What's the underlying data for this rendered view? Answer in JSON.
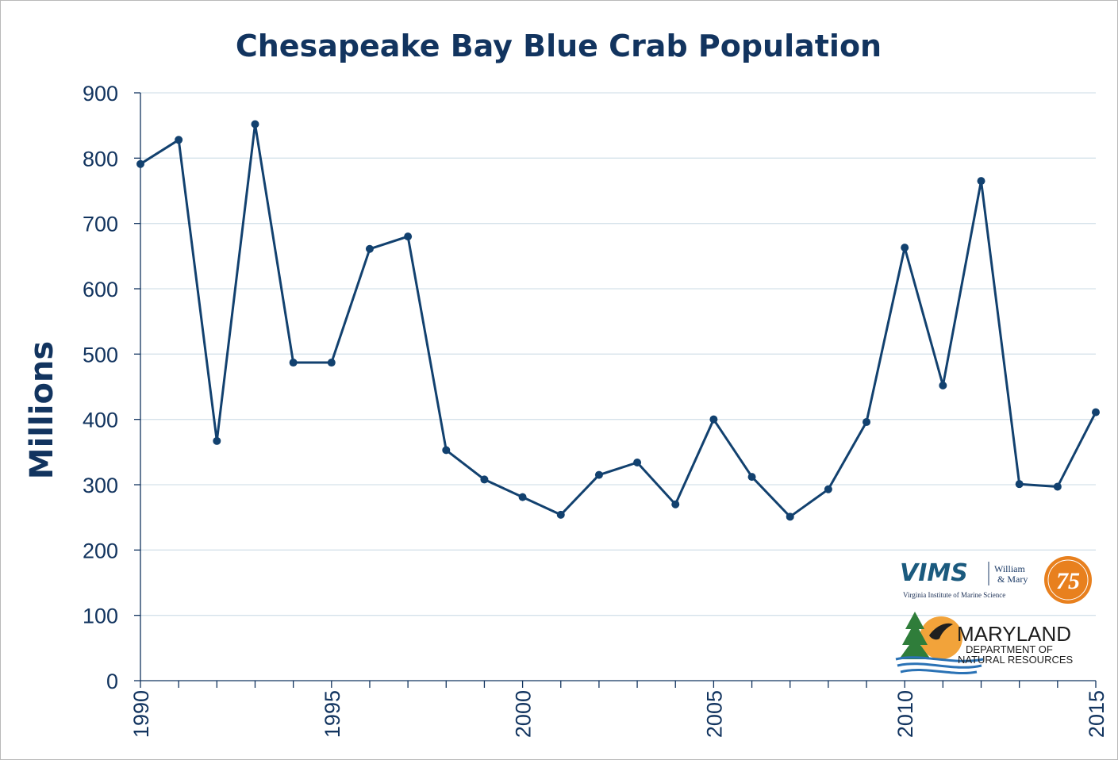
{
  "chart_data": {
    "type": "line",
    "title": "Chesapeake Bay Blue Crab Population",
    "xlabel": "",
    "ylabel": "Millions",
    "xlim": [
      1990,
      2015
    ],
    "ylim": [
      0,
      900
    ],
    "y_ticks": [
      0,
      100,
      200,
      300,
      400,
      500,
      600,
      700,
      800,
      900
    ],
    "x_tick_labels": [
      "1990",
      "1995",
      "2000",
      "2005",
      "2010",
      "2015"
    ],
    "grid": "horizontal",
    "colors": {
      "series": "#12416f",
      "text": "#12345f",
      "grid": "#d5e2ea"
    },
    "series": [
      {
        "x": [
          1990,
          1991,
          1992,
          1993,
          1994,
          1995,
          1996,
          1997,
          1998,
          1999,
          2000,
          2001,
          2002,
          2003,
          2004,
          2005,
          2006,
          2007,
          2008,
          2009,
          2010,
          2011,
          2012,
          2013,
          2014,
          2015
        ],
        "values": [
          791,
          828,
          367,
          852,
          487,
          487,
          661,
          680,
          353,
          308,
          281,
          254,
          315,
          334,
          270,
          400,
          312,
          251,
          293,
          396,
          663,
          452,
          765,
          301,
          297,
          411
        ]
      }
    ]
  },
  "logos": {
    "vims": {
      "text": "VIMS",
      "partner_line1": "William",
      "partner_line2": "& Mary",
      "subtitle": "Virginia Institute of Marine Science",
      "anniversary": "75",
      "icon": "vims-anniversary-seal"
    },
    "dnr": {
      "text": "MARYLAND",
      "line1": "DEPARTMENT OF",
      "line2": "NATURAL RESOURCES",
      "icon": "maryland-dnr-logo"
    }
  }
}
